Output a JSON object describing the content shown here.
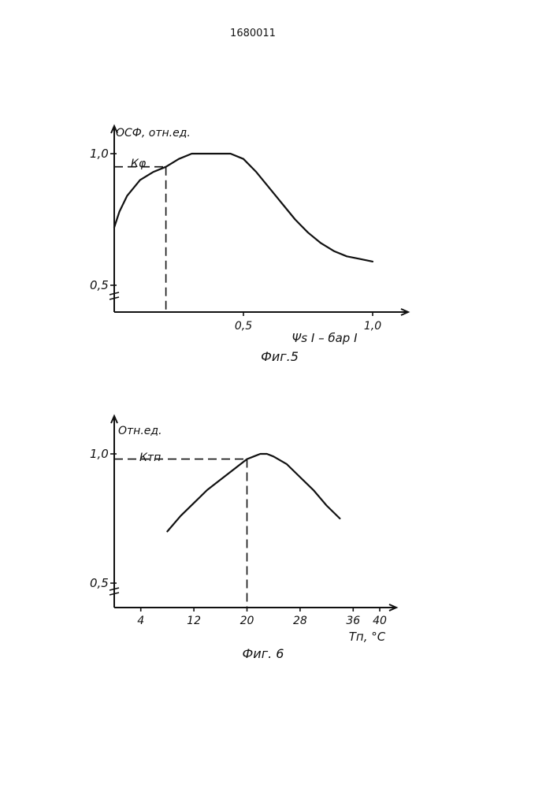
{
  "document": {
    "patent_number": "1680011"
  },
  "chart_data": [
    {
      "type": "line",
      "caption": "Фиг.5",
      "ylabel": "ОСФ, отн.ед.",
      "xlabel": "Ψs I – бар I",
      "x_ticks": [
        0.5,
        1.0
      ],
      "x_tick_labels": [
        "0,5",
        "1,0"
      ],
      "y_ticks": [
        0.5,
        1.0
      ],
      "y_tick_labels": [
        "0,5",
        "1,0"
      ],
      "xlim": [
        0,
        1.1
      ],
      "ylim": [
        0.45,
        1.05
      ],
      "axis_break": true,
      "marker": {
        "label": "Кφ",
        "x": 0.2,
        "y": 0.95
      },
      "series": [
        {
          "x": [
            0.0,
            0.02,
            0.05,
            0.1,
            0.15,
            0.2,
            0.25,
            0.3,
            0.35,
            0.4,
            0.45,
            0.5,
            0.55,
            0.6,
            0.65,
            0.7,
            0.75,
            0.8,
            0.85,
            0.9,
            0.95,
            1.0
          ],
          "y": [
            0.72,
            0.78,
            0.84,
            0.9,
            0.93,
            0.95,
            0.98,
            1.0,
            1.0,
            1.0,
            1.0,
            0.98,
            0.93,
            0.87,
            0.81,
            0.75,
            0.7,
            0.66,
            0.63,
            0.61,
            0.6,
            0.59
          ]
        }
      ]
    },
    {
      "type": "line",
      "caption": "Фиг. 6",
      "ylabel": "Отн.ед.",
      "xlabel": "Тп, °С",
      "x_ticks": [
        4,
        12,
        20,
        28,
        36,
        40
      ],
      "x_tick_labels": [
        "4",
        "12",
        "20",
        "28",
        "36",
        "40"
      ],
      "y_ticks": [
        0.5,
        1.0
      ],
      "y_tick_labels": [
        "0,5",
        "1,0"
      ],
      "xlim": [
        0,
        42
      ],
      "ylim": [
        0.45,
        1.05
      ],
      "axis_break": true,
      "marker": {
        "label": "Ктп",
        "x": 20,
        "y": 0.98
      },
      "series": [
        {
          "x": [
            8,
            10,
            12,
            14,
            16,
            18,
            20,
            21,
            22,
            23,
            24,
            26,
            28,
            30,
            32,
            34
          ],
          "y": [
            0.7,
            0.76,
            0.81,
            0.86,
            0.9,
            0.94,
            0.98,
            0.99,
            1.0,
            1.0,
            0.99,
            0.96,
            0.91,
            0.86,
            0.8,
            0.75
          ]
        }
      ]
    }
  ]
}
